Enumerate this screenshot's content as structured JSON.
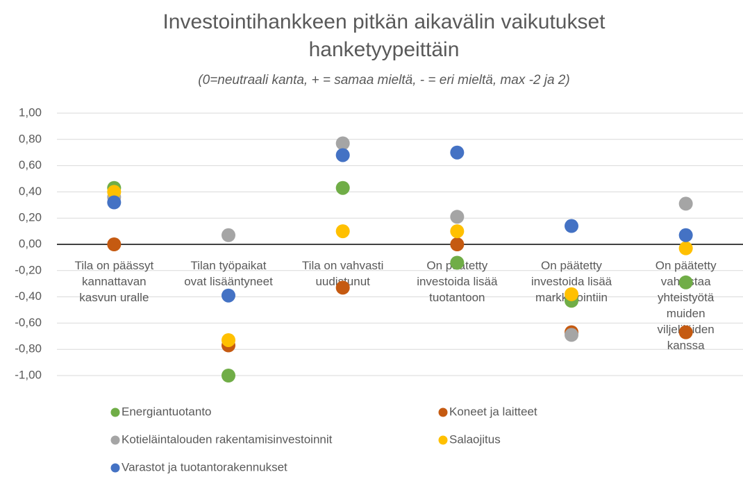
{
  "chart_data": {
    "type": "dot",
    "title": "Investointihankkeen pitkän aikavälin vaikutukset hanketyypeittäin",
    "subtitle": "(0=neutraali kanta, + = samaa mieltä, - = eri mieltä, max -2 ja 2)",
    "categories": [
      "Tila on päässyt kannattavan kasvun uralle",
      "Tilan työpaikat ovat lisääntyneet",
      "Tila on vahvasti uudistunut",
      "On päätetty investoida lisää tuotantoon",
      "On päätetty investoida lisää markkinointiin",
      "On päätetty vahvistaa yhteistyötä muiden viljelijöiden kanssa"
    ],
    "series": [
      {
        "name": "Energiantuotanto",
        "color": "#70ad47",
        "values": [
          0.43,
          -1.0,
          0.43,
          -0.14,
          -0.43,
          -0.29
        ]
      },
      {
        "name": "Koneet ja laitteet",
        "color": "#c55a11",
        "values": [
          0,
          -0.77,
          -0.33,
          0,
          -0.67,
          -0.67
        ]
      },
      {
        "name": "Kotieläintalouden rakentamisinvestoinnit",
        "color": "#a5a5a5",
        "values": [
          0.36,
          0.07,
          0.77,
          0.21,
          -0.69,
          0.31
        ]
      },
      {
        "name": "Salaojitus",
        "color": "#ffc000",
        "values": [
          0.4,
          -0.73,
          0.1,
          0.1,
          -0.38,
          -0.03
        ]
      },
      {
        "name": "Varastot ja tuotantorakennukset",
        "color": "#4472c4",
        "values": [
          0.32,
          -0.39,
          0.68,
          0.7,
          0.14,
          0.07
        ]
      }
    ],
    "ylim": [
      -1,
      1
    ],
    "yticks": [
      {
        "value": -1,
        "label": "-1,00"
      },
      {
        "value": -0.8,
        "label": "-0,80"
      },
      {
        "value": -0.6,
        "label": "-0,60"
      },
      {
        "value": -0.4,
        "label": "-0,40"
      },
      {
        "value": -0.2,
        "label": "-0,20"
      },
      {
        "value": 0,
        "label": "0,00"
      },
      {
        "value": 0.2,
        "label": "0,20"
      },
      {
        "value": 0.4,
        "label": "0,40"
      },
      {
        "value": 0.6,
        "label": "0,60"
      },
      {
        "value": 0.8,
        "label": "0,80"
      },
      {
        "value": 1,
        "label": "1,00"
      }
    ],
    "grid": true
  }
}
